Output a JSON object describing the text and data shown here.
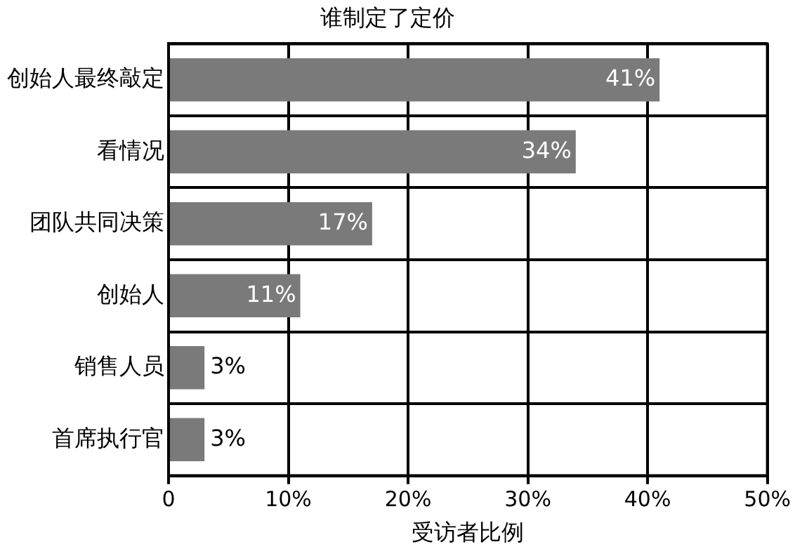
{
  "chart_data": {
    "type": "bar",
    "orientation": "horizontal",
    "title": "谁制定了定价",
    "xlabel": "受访者比例",
    "categories": [
      "创始人最终敲定",
      "看情况",
      "团队共同决策",
      "创始人",
      "销售人员",
      "首席执行官"
    ],
    "values": [
      41,
      34,
      17,
      11,
      3,
      3
    ],
    "value_labels": [
      "41%",
      "34%",
      "17%",
      "11%",
      "3%",
      "3%"
    ],
    "color": "#7a7a7a",
    "xlim": [
      0,
      50
    ],
    "xticks": [
      0,
      {
        "value": 10,
        "label": "10%"
      },
      {
        "value": 20,
        "label": "20%"
      },
      {
        "value": 30,
        "label": "30%"
      },
      {
        "value": 40,
        "label": "40%"
      },
      {
        "value": 50,
        "label": "50%"
      }
    ],
    "grid": true
  }
}
